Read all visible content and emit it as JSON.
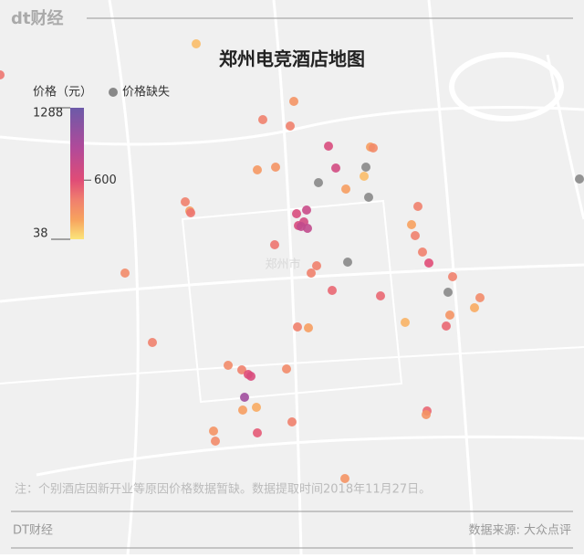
{
  "logo": "dt财经",
  "title": "郑州电竞酒店地图",
  "map_label": "郑州市",
  "legend": {
    "title": "价格（元）",
    "missing": "价格缺失",
    "range": [
      38,
      1288
    ],
    "ticks": [
      38,
      600,
      1288
    ]
  },
  "points": [
    150,
    450,
    300,
    400,
    400,
    650,
    250,
    350,
    700,
    280,
    300,
    null,
    150,
    null,
    250,
    null,
    400,
    250,
    450,
    750,
    650,
    400,
    700,
    650,
    800,
    800,
    230,
    400,
    450,
    400,
    600,
    400,
    400,
    null,
    350,
    400,
    500,
    500,
    null,
    350,
    200,
    300,
    180,
    500,
    400,
    250,
    400,
    350,
    400,
    600,
    650,
    350,
    1000,
    250,
    200,
    400,
    500,
    300,
    300,
    550,
    350,
    300,
    null
  ],
  "note": "注：个别酒店因新开业等原因价格数据暂缺。数据提取时间2018年11月27日。",
  "footer": {
    "brand": "DT财经",
    "source": "数据来源: 大众点评"
  }
}
